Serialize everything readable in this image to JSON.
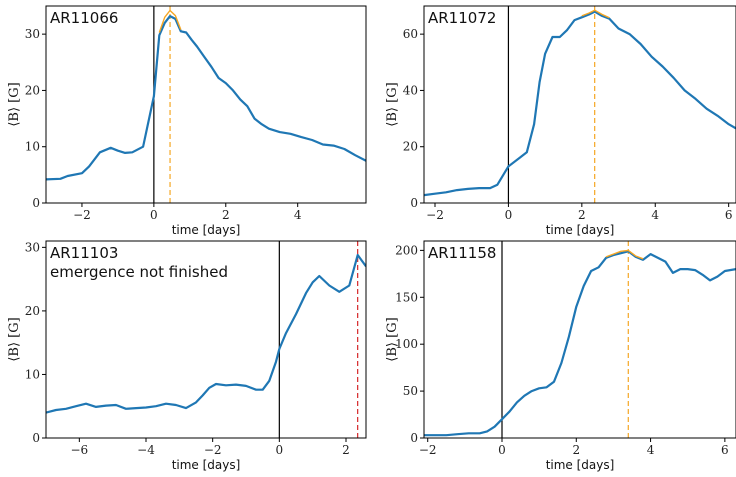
{
  "chart_data": [
    {
      "type": "line",
      "title": "AR11066",
      "subtitle": "",
      "xlabel": "time [days]",
      "ylabel": "⟨B⟩ [G]",
      "xlim": [
        -3.0,
        5.9
      ],
      "ylim": [
        0,
        35
      ],
      "xticks": [
        -2,
        0,
        2,
        4
      ],
      "xtick_labels": [
        "−2",
        "0",
        "2",
        "4"
      ],
      "yticks": [
        0,
        10,
        20,
        30
      ],
      "ytick_labels": [
        "0",
        "10",
        "20",
        "30"
      ],
      "vlines": [
        {
          "x": 0,
          "color": "#000000",
          "style": "solid"
        },
        {
          "x": 0.45,
          "color": "#f5a623",
          "style": "dashed"
        }
      ],
      "series": [
        {
          "color": "#1f77b4",
          "x": [
            -3.0,
            -2.6,
            -2.4,
            -2.0,
            -1.8,
            -1.5,
            -1.2,
            -1.0,
            -0.8,
            -0.6,
            -0.3,
            0.0,
            0.15,
            0.3,
            0.45,
            0.6,
            0.75,
            0.9,
            1.05,
            1.2,
            1.4,
            1.6,
            1.8,
            2.0,
            2.2,
            2.4,
            2.6,
            2.8,
            3.0,
            3.2,
            3.5,
            3.8,
            4.1,
            4.4,
            4.7,
            5.0,
            5.3,
            5.6,
            5.9
          ],
          "y": [
            4.2,
            4.3,
            4.8,
            5.3,
            6.5,
            9.0,
            9.8,
            9.3,
            8.9,
            9.0,
            10.0,
            19.0,
            29.8,
            32.0,
            33.2,
            32.7,
            30.5,
            30.3,
            29.0,
            27.8,
            26.0,
            24.2,
            22.2,
            21.3,
            20.0,
            18.4,
            17.2,
            15.0,
            14.0,
            13.2,
            12.6,
            12.3,
            11.7,
            11.2,
            10.4,
            10.2,
            9.6,
            8.5,
            7.5
          ]
        },
        {
          "color": "#f5a623",
          "x": [
            0.15,
            0.3,
            0.45,
            0.6,
            0.75
          ],
          "y": [
            30.3,
            33.0,
            34.2,
            33.3,
            30.8
          ]
        }
      ]
    },
    {
      "type": "line",
      "title": "AR11072",
      "subtitle": "",
      "xlabel": "time [days]",
      "ylabel": "⟨B⟩ [G]",
      "xlim": [
        -2.3,
        6.2
      ],
      "ylim": [
        0,
        70
      ],
      "xticks": [
        -2,
        0,
        2,
        4,
        6
      ],
      "xtick_labels": [
        "−2",
        "0",
        "2",
        "4",
        "6"
      ],
      "yticks": [
        0,
        20,
        40,
        60
      ],
      "ytick_labels": [
        "0",
        "20",
        "40",
        "60"
      ],
      "vlines": [
        {
          "x": 0,
          "color": "#000000",
          "style": "solid"
        },
        {
          "x": 2.35,
          "color": "#f5a623",
          "style": "dashed"
        }
      ],
      "series": [
        {
          "color": "#1f77b4",
          "x": [
            -2.3,
            -2.0,
            -1.7,
            -1.4,
            -1.1,
            -0.8,
            -0.5,
            -0.3,
            0.0,
            0.3,
            0.5,
            0.7,
            0.85,
            1.0,
            1.2,
            1.4,
            1.6,
            1.8,
            2.0,
            2.2,
            2.35,
            2.55,
            2.75,
            3.0,
            3.3,
            3.6,
            3.9,
            4.2,
            4.5,
            4.8,
            5.1,
            5.4,
            5.7,
            6.0,
            6.2
          ],
          "y": [
            2.8,
            3.3,
            3.8,
            4.6,
            5.0,
            5.3,
            5.3,
            6.5,
            13.0,
            16.0,
            18.0,
            28.0,
            43.0,
            53.0,
            59.0,
            59.0,
            61.5,
            65.0,
            66.0,
            67.0,
            68.0,
            66.5,
            65.5,
            62.0,
            60.0,
            56.5,
            52.0,
            48.5,
            44.5,
            40.0,
            37.0,
            33.5,
            31.0,
            28.0,
            26.5
          ]
        },
        {
          "color": "#f5a623",
          "x": [
            2.0,
            2.2,
            2.35,
            2.55,
            2.75
          ],
          "y": [
            66.5,
            67.5,
            68.5,
            67.0,
            65.8
          ]
        }
      ]
    },
    {
      "type": "line",
      "title": "AR11103",
      "subtitle": "emergence not finished",
      "xlabel": "time [days]",
      "ylabel": "⟨B⟩ [G]",
      "xlim": [
        -7.0,
        2.6
      ],
      "ylim": [
        0,
        31
      ],
      "xticks": [
        -6,
        -4,
        -2,
        0,
        2
      ],
      "xtick_labels": [
        "−6",
        "−4",
        "−2",
        "0",
        "2"
      ],
      "yticks": [
        0,
        10,
        20,
        30
      ],
      "ytick_labels": [
        "0",
        "10",
        "20",
        "30"
      ],
      "vlines": [
        {
          "x": 0,
          "color": "#000000",
          "style": "solid"
        },
        {
          "x": 2.35,
          "color": "#d62728",
          "style": "dashed"
        }
      ],
      "series": [
        {
          "color": "#1f77b4",
          "x": [
            -7.0,
            -6.7,
            -6.4,
            -6.1,
            -5.8,
            -5.5,
            -5.2,
            -4.9,
            -4.6,
            -4.3,
            -4.0,
            -3.7,
            -3.4,
            -3.1,
            -2.8,
            -2.5,
            -2.3,
            -2.1,
            -1.9,
            -1.6,
            -1.3,
            -1.0,
            -0.7,
            -0.5,
            -0.3,
            -0.1,
            0.0,
            0.2,
            0.5,
            0.8,
            1.0,
            1.2,
            1.5,
            1.8,
            2.1,
            2.35,
            2.6
          ],
          "y": [
            4.0,
            4.4,
            4.6,
            5.0,
            5.4,
            4.9,
            5.1,
            5.2,
            4.6,
            4.7,
            4.8,
            5.0,
            5.4,
            5.2,
            4.7,
            5.6,
            6.7,
            7.9,
            8.5,
            8.3,
            8.4,
            8.2,
            7.6,
            7.6,
            9.0,
            12.0,
            14.0,
            16.5,
            19.5,
            22.8,
            24.5,
            25.5,
            24.0,
            23.0,
            24.0,
            28.8,
            27.0
          ]
        }
      ]
    },
    {
      "type": "line",
      "title": "AR11158",
      "subtitle": "",
      "xlabel": "time [days]",
      "ylabel": "⟨B⟩ [G]",
      "xlim": [
        -2.1,
        6.3
      ],
      "ylim": [
        0,
        210
      ],
      "xticks": [
        -2,
        0,
        2,
        4,
        6
      ],
      "xtick_labels": [
        "−2",
        "0",
        "2",
        "4",
        "6"
      ],
      "yticks": [
        0,
        50,
        100,
        150,
        200
      ],
      "ytick_labels": [
        "0",
        "50",
        "100",
        "150",
        "200"
      ],
      "vlines": [
        {
          "x": 0,
          "color": "#000000",
          "style": "solid"
        },
        {
          "x": 3.4,
          "color": "#f5a623",
          "style": "dashed"
        }
      ],
      "series": [
        {
          "color": "#1f77b4",
          "x": [
            -2.1,
            -1.8,
            -1.5,
            -1.2,
            -0.9,
            -0.6,
            -0.4,
            -0.2,
            0.0,
            0.2,
            0.4,
            0.6,
            0.8,
            1.0,
            1.2,
            1.4,
            1.6,
            1.8,
            2.0,
            2.2,
            2.4,
            2.6,
            2.8,
            3.0,
            3.2,
            3.4,
            3.6,
            3.8,
            4.0,
            4.2,
            4.4,
            4.6,
            4.8,
            5.0,
            5.2,
            5.4,
            5.6,
            5.8,
            6.0,
            6.3
          ],
          "y": [
            3,
            3,
            3,
            4,
            5,
            5,
            7,
            12,
            20,
            28,
            38,
            45,
            50,
            53,
            54,
            60,
            80,
            108,
            140,
            162,
            178,
            182,
            192,
            195,
            197,
            199,
            193,
            190,
            196,
            192,
            188,
            176,
            180,
            180,
            179,
            174,
            168,
            172,
            178,
            180
          ]
        },
        {
          "color": "#f5a623",
          "x": [
            2.8,
            3.0,
            3.2,
            3.4,
            3.6,
            3.8
          ],
          "y": [
            193,
            196,
            199,
            200,
            194,
            191
          ]
        }
      ]
    }
  ]
}
